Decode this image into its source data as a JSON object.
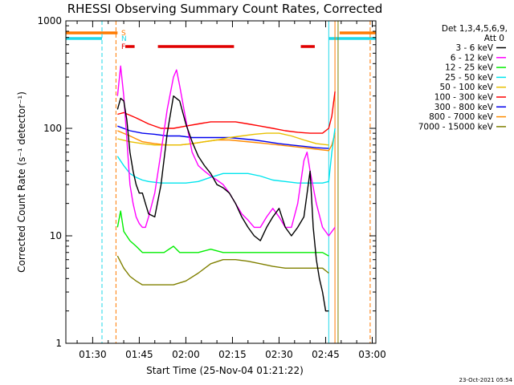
{
  "chart_data": {
    "type": "line",
    "title": "RHESSI Observing Summary Count Rates, Corrected",
    "xlabel": "Start Time (25-Nov-04 01:21:22)",
    "ylabel": "Corrected Count Rate (s⁻¹ detector⁻¹)",
    "yscale": "log",
    "xlim": [
      "01:21:22",
      "03:01:10"
    ],
    "ylim": [
      1,
      1000
    ],
    "x_ticks": [
      "01:30",
      "01:45",
      "02:00",
      "02:15",
      "02:30",
      "02:45",
      "03:00"
    ],
    "y_ticks": [
      "1",
      "10",
      "100",
      "1000"
    ],
    "stamp": "23-Oct-2021 05:54",
    "legend_header": [
      "Det 1,3,4,5,6,9,",
      "Att 0"
    ],
    "flags": [
      {
        "label": "S",
        "color": "#ff7a00",
        "segments": [
          [
            "01:21:22",
            "01:38:00"
          ],
          [
            "02:49:30",
            "03:01:10"
          ]
        ]
      },
      {
        "label": "N",
        "color": "#22d8e8",
        "segments": [
          [
            "01:21:22",
            "01:33:00"
          ],
          [
            "02:46:00",
            "03:01:10"
          ]
        ]
      },
      {
        "label": "F",
        "color": "#e00000",
        "segments": [
          [
            "01:40:30",
            "01:43:30"
          ],
          [
            "01:51:00",
            "02:15:30"
          ],
          [
            "02:37:00",
            "02:41:30"
          ]
        ]
      }
    ],
    "vlines": [
      {
        "t": "01:33:00",
        "color": "#22d8e8",
        "style": "dashed"
      },
      {
        "t": "01:37:30",
        "color": "#ff7a00",
        "style": "dashed"
      },
      {
        "t": "02:46:00",
        "color": "#22d8e8",
        "style": "solid"
      },
      {
        "t": "02:48:00",
        "color": "#ff7a00",
        "style": "solid"
      },
      {
        "t": "02:49:00",
        "color": "#808000",
        "style": "solid"
      },
      {
        "t": "02:59:20",
        "color": "#ff7a00",
        "style": "dashed"
      }
    ],
    "series": [
      {
        "name": "3 - 6 keV",
        "color": "#000000",
        "x": [
          "01:38:00",
          "01:39:00",
          "01:40:00",
          "01:41:00",
          "01:42:00",
          "01:43:00",
          "01:44:00",
          "01:45:00",
          "01:46:00",
          "01:47:00",
          "01:48:00",
          "01:50:00",
          "01:52:00",
          "01:54:00",
          "01:56:00",
          "01:58:00",
          "02:00:00",
          "02:02:00",
          "02:04:00",
          "02:06:00",
          "02:08:00",
          "02:10:00",
          "02:12:00",
          "02:14:00",
          "02:16:00",
          "02:18:00",
          "02:20:00",
          "02:22:00",
          "02:24:00",
          "02:26:00",
          "02:28:00",
          "02:30:00",
          "02:32:00",
          "02:34:00",
          "02:36:00",
          "02:38:00",
          "02:40:00",
          "02:41:00",
          "02:42:00",
          "02:43:00",
          "02:44:00",
          "02:45:00",
          "02:46:00"
        ],
        "y": [
          150,
          190,
          180,
          120,
          60,
          40,
          30,
          25,
          25,
          20,
          16,
          15,
          30,
          90,
          200,
          180,
          110,
          75,
          55,
          45,
          38,
          30,
          28,
          25,
          20,
          15,
          12,
          10,
          9,
          12,
          15,
          18,
          12,
          10,
          12,
          15,
          40,
          12,
          6,
          4,
          3,
          2,
          2
        ]
      },
      {
        "name": "6 - 12 keV",
        "color": "#ff00ff",
        "x": [
          "01:38:00",
          "01:39:00",
          "01:40:00",
          "01:41:00",
          "01:42:00",
          "01:43:00",
          "01:44:00",
          "01:45:00",
          "01:46:00",
          "01:47:00",
          "01:48:00",
          "01:50:00",
          "01:52:00",
          "01:54:00",
          "01:56:00",
          "01:57:00",
          "01:58:00",
          "02:00:00",
          "02:02:00",
          "02:04:00",
          "02:06:00",
          "02:08:00",
          "02:10:00",
          "02:12:00",
          "02:14:00",
          "02:16:00",
          "02:18:00",
          "02:20:00",
          "02:22:00",
          "02:24:00",
          "02:26:00",
          "02:28:00",
          "02:30:00",
          "02:32:00",
          "02:34:00",
          "02:36:00",
          "02:38:00",
          "02:39:00",
          "02:40:00",
          "02:42:00",
          "02:44:00",
          "02:46:00",
          "02:48:00"
        ],
        "y": [
          200,
          380,
          200,
          80,
          30,
          20,
          15,
          13,
          12,
          12,
          15,
          25,
          60,
          150,
          300,
          350,
          250,
          120,
          60,
          45,
          40,
          36,
          33,
          30,
          25,
          20,
          16,
          14,
          12,
          12,
          15,
          18,
          15,
          12,
          12,
          20,
          50,
          60,
          40,
          20,
          12,
          10,
          12
        ]
      },
      {
        "name": "12 - 25 keV",
        "color": "#00ee00",
        "x": [
          "01:38:00",
          "01:39:00",
          "01:40:00",
          "01:42:00",
          "01:44:00",
          "01:46:00",
          "01:48:00",
          "01:50:00",
          "01:53:00",
          "01:56:00",
          "01:58:00",
          "02:00:00",
          "02:04:00",
          "02:08:00",
          "02:12:00",
          "02:16:00",
          "02:20:00",
          "02:24:00",
          "02:28:00",
          "02:32:00",
          "02:36:00",
          "02:40:00",
          "02:44:00",
          "02:46:00"
        ],
        "y": [
          12,
          17,
          11,
          9,
          8,
          7,
          7,
          7,
          7,
          8,
          7,
          7,
          7,
          7.5,
          7,
          7,
          7,
          7,
          7,
          7,
          7,
          7,
          7,
          6.5
        ]
      },
      {
        "name": "25 - 50 keV",
        "color": "#00e5ee",
        "x": [
          "01:38:00",
          "01:40:00",
          "01:42:00",
          "01:44:00",
          "01:46:00",
          "01:48:00",
          "01:52:00",
          "01:56:00",
          "02:00:00",
          "02:04:00",
          "02:08:00",
          "02:12:00",
          "02:16:00",
          "02:20:00",
          "02:24:00",
          "02:28:00",
          "02:32:00",
          "02:36:00",
          "02:40:00",
          "02:44:00",
          "02:46:00",
          "02:47:00",
          "02:48:00"
        ],
        "y": [
          55,
          45,
          38,
          35,
          33,
          32,
          31,
          31,
          31,
          32,
          35,
          38,
          38,
          38,
          36,
          33,
          32,
          31,
          31,
          31,
          32,
          60,
          100
        ]
      },
      {
        "name": "50 - 100 keV",
        "color": "#e8c000",
        "x": [
          "01:38:00",
          "01:42:00",
          "01:46:00",
          "01:50:00",
          "01:54:00",
          "01:58:00",
          "02:02:00",
          "02:06:00",
          "02:10:00",
          "02:14:00",
          "02:18:00",
          "02:22:00",
          "02:26:00",
          "02:30:00",
          "02:34:00",
          "02:38:00",
          "02:42:00",
          "02:46:00"
        ],
        "y": [
          80,
          75,
          72,
          70,
          70,
          70,
          72,
          75,
          78,
          82,
          85,
          88,
          90,
          90,
          85,
          78,
          72,
          70
        ]
      },
      {
        "name": "100 - 300 keV",
        "color": "#ff0000",
        "x": [
          "01:38:00",
          "01:40:00",
          "01:44:00",
          "01:48:00",
          "01:52:00",
          "01:56:00",
          "02:00:00",
          "02:04:00",
          "02:08:00",
          "02:12:00",
          "02:16:00",
          "02:20:00",
          "02:24:00",
          "02:28:00",
          "02:32:00",
          "02:36:00",
          "02:40:00",
          "02:44:00",
          "02:46:00",
          "02:47:00",
          "02:48:00"
        ],
        "y": [
          135,
          140,
          125,
          110,
          100,
          100,
          105,
          110,
          115,
          115,
          115,
          110,
          105,
          100,
          95,
          92,
          90,
          90,
          100,
          130,
          220
        ]
      },
      {
        "name": "300 - 800 keV",
        "color": "#0000ee",
        "x": [
          "01:38:00",
          "01:42:00",
          "01:46:00",
          "01:50:00",
          "01:54:00",
          "01:58:00",
          "02:02:00",
          "02:06:00",
          "02:10:00",
          "02:14:00",
          "02:18:00",
          "02:22:00",
          "02:26:00",
          "02:30:00",
          "02:34:00",
          "02:38:00",
          "02:42:00",
          "02:46:00"
        ],
        "y": [
          105,
          95,
          90,
          88,
          85,
          85,
          82,
          82,
          82,
          82,
          80,
          78,
          75,
          72,
          70,
          68,
          66,
          65
        ]
      },
      {
        "name": "800 - 7000 keV",
        "color": "#ff8c00",
        "x": [
          "01:38:00",
          "01:42:00",
          "01:46:00",
          "01:50:00",
          "01:54:00",
          "01:58:00",
          "02:02:00",
          "02:06:00",
          "02:10:00",
          "02:14:00",
          "02:18:00",
          "02:22:00",
          "02:26:00",
          "02:30:00",
          "02:34:00",
          "02:38:00",
          "02:42:00",
          "02:46:00",
          "02:47:00",
          "02:48:00"
        ],
        "y": [
          95,
          85,
          75,
          72,
          70,
          70,
          72,
          75,
          78,
          78,
          76,
          74,
          72,
          70,
          68,
          66,
          64,
          62,
          70,
          90
        ]
      },
      {
        "name": "7000 - 15000 keV",
        "color": "#808000",
        "x": [
          "01:38:00",
          "01:40:00",
          "01:42:00",
          "01:44:00",
          "01:46:00",
          "01:48:00",
          "01:52:00",
          "01:56:00",
          "02:00:00",
          "02:04:00",
          "02:08:00",
          "02:12:00",
          "02:16:00",
          "02:20:00",
          "02:24:00",
          "02:28:00",
          "02:32:00",
          "02:36:00",
          "02:40:00",
          "02:44:00",
          "02:46:00"
        ],
        "y": [
          6.5,
          5,
          4.2,
          3.8,
          3.5,
          3.5,
          3.5,
          3.5,
          3.8,
          4.5,
          5.5,
          6,
          6,
          5.8,
          5.5,
          5.2,
          5,
          5,
          5,
          5,
          4.5
        ]
      }
    ]
  }
}
